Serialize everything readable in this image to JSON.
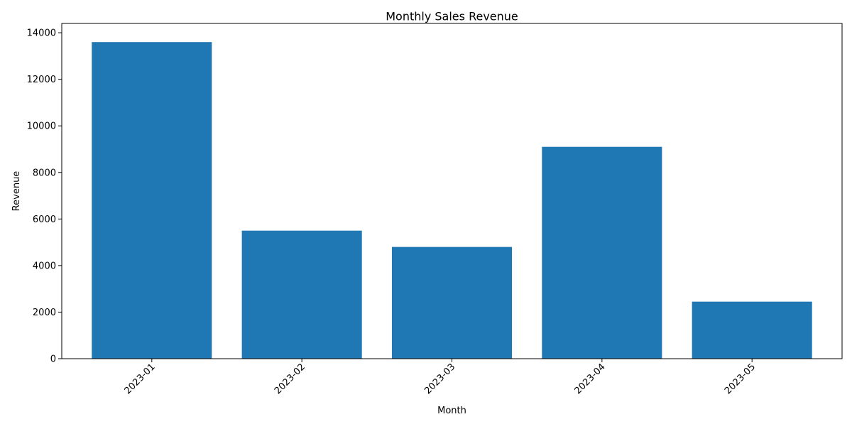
{
  "chart_data": {
    "type": "bar",
    "title": "Monthly Sales Revenue",
    "xlabel": "Month",
    "ylabel": "Revenue",
    "categories": [
      "2023-01",
      "2023-02",
      "2023-03",
      "2023-04",
      "2023-05"
    ],
    "values": [
      13600,
      5500,
      4800,
      9100,
      2450
    ],
    "ylim": [
      0,
      14400
    ],
    "yticks": [
      0,
      2000,
      4000,
      6000,
      8000,
      10000,
      12000,
      14000
    ],
    "x_tick_rotation_deg": 45,
    "grid": false,
    "legend": "none",
    "bar_color": "#1f77b4"
  }
}
